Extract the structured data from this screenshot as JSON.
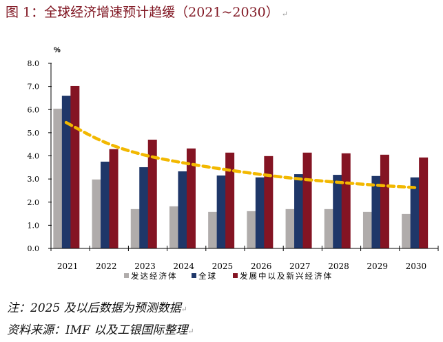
{
  "title": "图 1：全球经济增速预计趋缓（2021~2030）",
  "chart_data": {
    "type": "bar",
    "ylabel": "%",
    "ylim": [
      0,
      8
    ],
    "yticks": [
      "0.0",
      "1.0",
      "2.0",
      "3.0",
      "4.0",
      "5.0",
      "6.0",
      "7.0",
      "8.0"
    ],
    "categories": [
      "2021",
      "2022",
      "2023",
      "2024",
      "2025",
      "2026",
      "2027",
      "2028",
      "2029",
      "2030"
    ],
    "series": [
      {
        "name": "发达经济体",
        "color": "#b0acab",
        "values": [
          6.04,
          2.98,
          1.7,
          1.82,
          1.58,
          1.61,
          1.7,
          1.7,
          1.58,
          1.49
        ]
      },
      {
        "name": "全球",
        "color": "#1f3769",
        "values": [
          6.6,
          3.75,
          3.51,
          3.33,
          3.15,
          3.07,
          3.21,
          3.18,
          3.13,
          3.07
        ]
      },
      {
        "name": "发展中以及新兴经济体",
        "color": "#841423",
        "values": [
          7.02,
          4.29,
          4.7,
          4.32,
          4.14,
          3.99,
          4.14,
          4.11,
          4.05,
          3.93
        ]
      }
    ],
    "trendline": {
      "style": "dashed",
      "color": "#f2b800",
      "values": [
        5.44,
        4.54,
        4.02,
        3.7,
        3.43,
        3.2,
        3.0,
        2.86,
        2.73,
        2.63
      ]
    },
    "legend_placement": "bottom",
    "grid": false
  },
  "notes": {
    "note1": "注：2025 及以后数据为预测数据",
    "note2": "资料来源：IMF 以及工银国际整理"
  }
}
